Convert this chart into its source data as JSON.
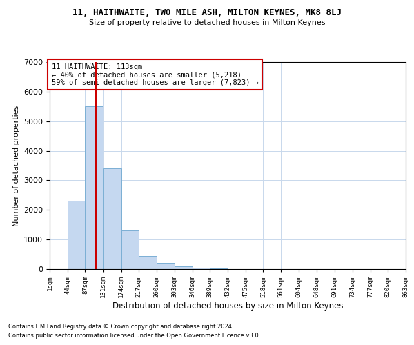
{
  "title1": "11, HAITHWAITE, TWO MILE ASH, MILTON KEYNES, MK8 8LJ",
  "title2": "Size of property relative to detached houses in Milton Keynes",
  "xlabel": "Distribution of detached houses by size in Milton Keynes",
  "ylabel": "Number of detached properties",
  "footer1": "Contains HM Land Registry data © Crown copyright and database right 2024.",
  "footer2": "Contains public sector information licensed under the Open Government Licence v3.0.",
  "annotation_title": "11 HAITHWAITE: 113sqm",
  "annotation_line1": "← 40% of detached houses are smaller (5,218)",
  "annotation_line2": "59% of semi-detached houses are larger (7,823) →",
  "property_size": 113,
  "bar_left_edges": [
    1,
    44,
    87,
    131,
    174,
    217,
    260,
    303,
    346,
    389,
    432,
    475,
    518,
    561,
    604,
    648,
    691,
    734,
    777,
    820
  ],
  "bar_heights": [
    0,
    2300,
    5500,
    3400,
    1300,
    450,
    200,
    100,
    50,
    20,
    10,
    5,
    5,
    3,
    2,
    2,
    1,
    1,
    1,
    1
  ],
  "bin_width": 43,
  "bar_color": "#c5d8f0",
  "bar_edge_color": "#7bafd4",
  "vline_color": "#cc0000",
  "annotation_box_edge": "#cc0000",
  "background_color": "#ffffff",
  "grid_color": "#c8d8ec",
  "tick_labels": [
    "1sqm",
    "44sqm",
    "87sqm",
    "131sqm",
    "174sqm",
    "217sqm",
    "260sqm",
    "303sqm",
    "346sqm",
    "389sqm",
    "432sqm",
    "475sqm",
    "518sqm",
    "561sqm",
    "604sqm",
    "648sqm",
    "691sqm",
    "734sqm",
    "777sqm",
    "820sqm",
    "863sqm"
  ],
  "ylim": [
    0,
    7000
  ],
  "yticks": [
    0,
    1000,
    2000,
    3000,
    4000,
    5000,
    6000,
    7000
  ]
}
